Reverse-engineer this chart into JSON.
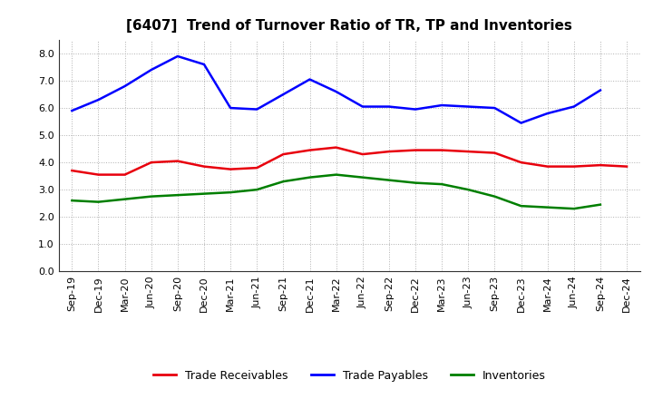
{
  "title": "[6407]  Trend of Turnover Ratio of TR, TP and Inventories",
  "labels": [
    "Sep-19",
    "Dec-19",
    "Mar-20",
    "Jun-20",
    "Sep-20",
    "Dec-20",
    "Mar-21",
    "Jun-21",
    "Sep-21",
    "Dec-21",
    "Mar-22",
    "Jun-22",
    "Sep-22",
    "Dec-22",
    "Mar-23",
    "Jun-23",
    "Sep-23",
    "Dec-23",
    "Mar-24",
    "Jun-24",
    "Sep-24",
    "Dec-24"
  ],
  "trade_receivables": [
    3.7,
    3.55,
    3.55,
    4.0,
    4.05,
    3.85,
    3.75,
    3.8,
    4.3,
    4.45,
    4.55,
    4.3,
    4.4,
    4.45,
    4.45,
    4.4,
    4.35,
    4.0,
    3.85,
    3.85,
    3.9,
    3.85
  ],
  "trade_payables": [
    5.9,
    6.3,
    6.8,
    7.4,
    7.9,
    7.6,
    6.0,
    5.95,
    6.5,
    7.05,
    6.6,
    6.05,
    6.05,
    5.95,
    6.1,
    6.05,
    6.0,
    5.45,
    5.8,
    6.05,
    6.65,
    null
  ],
  "inventories": [
    2.6,
    2.55,
    2.65,
    2.75,
    2.8,
    2.85,
    2.9,
    3.0,
    3.3,
    3.45,
    3.55,
    3.45,
    3.35,
    3.25,
    3.2,
    3.0,
    2.75,
    2.4,
    2.35,
    2.3,
    2.45,
    null
  ],
  "trade_receivables_color": "#e8000d",
  "trade_payables_color": "#0000ff",
  "inventories_color": "#007f00",
  "background_color": "#ffffff",
  "grid_color": "#b0b0b0",
  "ylim": [
    0.0,
    8.5
  ],
  "yticks": [
    0.0,
    1.0,
    2.0,
    3.0,
    4.0,
    5.0,
    6.0,
    7.0,
    8.0
  ],
  "title_fontsize": 11,
  "legend_fontsize": 9,
  "axis_fontsize": 8
}
